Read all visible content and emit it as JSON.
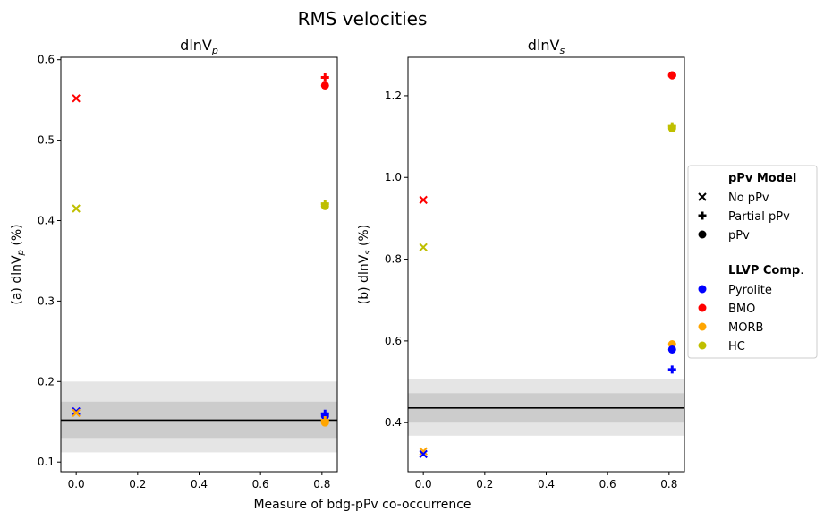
{
  "figure": {
    "suptitle": "RMS velocities",
    "xlabel": "Measure of bdg-pPv co-occurrence"
  },
  "legend": {
    "model_title": "pPv Model",
    "model_items": [
      {
        "label": "No pPv",
        "marker": "x"
      },
      {
        "label": "Partial pPv",
        "marker": "plus"
      },
      {
        "label": "pPv",
        "marker": "circle"
      }
    ],
    "comp_title_bold": "LLVP Comp",
    "comp_title_suffix": ".",
    "comp_items": [
      {
        "label": "Pyrolite",
        "color": "#0000ff"
      },
      {
        "label": "BMO",
        "color": "#ff0000"
      },
      {
        "label": "MORB",
        "color": "#ffa500"
      },
      {
        "label": "HC",
        "color": "#bfbf00"
      }
    ]
  },
  "chart_data": [
    {
      "type": "scatter",
      "title_main": "dlnV",
      "title_sub": "p",
      "ylabel_prefix": "(a) dlnV",
      "ylabel_sub": "p",
      "ylabel_suffix": " (%)",
      "xlim": [
        -0.05,
        0.85
      ],
      "ylim": [
        0.088,
        0.603
      ],
      "xticks": [
        0.0,
        0.2,
        0.4,
        0.6,
        0.8
      ],
      "xticklabels": [
        "0.0",
        "0.2",
        "0.4",
        "0.6",
        "0.8"
      ],
      "yticks": [
        0.1,
        0.2,
        0.3,
        0.4,
        0.5,
        0.6
      ],
      "yticklabels": [
        "0.1",
        "0.2",
        "0.3",
        "0.4",
        "0.5",
        "0.6"
      ],
      "bands": [
        {
          "y0": 0.112,
          "y1": 0.2,
          "color": "#e5e5e5"
        },
        {
          "y0": 0.13,
          "y1": 0.175,
          "color": "#cccccc"
        }
      ],
      "hline": 0.152,
      "points": [
        {
          "x": 0.0,
          "y": 0.552,
          "marker": "x",
          "comp": "BMO"
        },
        {
          "x": 0.0,
          "y": 0.415,
          "marker": "x",
          "comp": "HC"
        },
        {
          "x": 0.0,
          "y": 0.163,
          "marker": "x",
          "comp": "Pyrolite"
        },
        {
          "x": 0.0,
          "y": 0.161,
          "marker": "x",
          "comp": "MORB"
        },
        {
          "x": 0.81,
          "y": 0.578,
          "marker": "plus",
          "comp": "BMO"
        },
        {
          "x": 0.81,
          "y": 0.568,
          "marker": "circle",
          "comp": "BMO"
        },
        {
          "x": 0.81,
          "y": 0.421,
          "marker": "plus",
          "comp": "HC"
        },
        {
          "x": 0.81,
          "y": 0.418,
          "marker": "circle",
          "comp": "HC"
        },
        {
          "x": 0.81,
          "y": 0.16,
          "marker": "plus",
          "comp": "Pyrolite"
        },
        {
          "x": 0.81,
          "y": 0.157,
          "marker": "circle",
          "comp": "Pyrolite"
        },
        {
          "x": 0.81,
          "y": 0.152,
          "marker": "plus",
          "comp": "MORB"
        },
        {
          "x": 0.81,
          "y": 0.149,
          "marker": "circle",
          "comp": "MORB"
        }
      ]
    },
    {
      "type": "scatter",
      "title_main": "dlnV",
      "title_sub": "s",
      "ylabel_prefix": "(b) dlnV",
      "ylabel_sub": "s",
      "ylabel_suffix": " (%)",
      "xlim": [
        -0.05,
        0.85
      ],
      "ylim": [
        0.28,
        1.294
      ],
      "xticks": [
        0.0,
        0.2,
        0.4,
        0.6,
        0.8
      ],
      "xticklabels": [
        "0.0",
        "0.2",
        "0.4",
        "0.6",
        "0.8"
      ],
      "yticks": [
        0.4,
        0.6,
        0.8,
        1.0,
        1.2
      ],
      "yticklabels": [
        "0.4",
        "0.6",
        "0.8",
        "1.0",
        "1.2"
      ],
      "bands": [
        {
          "y0": 0.368,
          "y1": 0.507,
          "color": "#e5e5e5"
        },
        {
          "y0": 0.4,
          "y1": 0.472,
          "color": "#cccccc"
        }
      ],
      "hline": 0.436,
      "points": [
        {
          "x": 0.0,
          "y": 0.945,
          "marker": "x",
          "comp": "BMO"
        },
        {
          "x": 0.0,
          "y": 0.829,
          "marker": "x",
          "comp": "HC"
        },
        {
          "x": 0.0,
          "y": 0.33,
          "marker": "x",
          "comp": "MORB"
        },
        {
          "x": 0.0,
          "y": 0.323,
          "marker": "x",
          "comp": "Pyrolite"
        },
        {
          "x": 0.81,
          "y": 1.25,
          "marker": "plus",
          "comp": "BMO"
        },
        {
          "x": 0.81,
          "y": 1.25,
          "marker": "circle",
          "comp": "BMO"
        },
        {
          "x": 0.81,
          "y": 1.125,
          "marker": "plus",
          "comp": "HC"
        },
        {
          "x": 0.81,
          "y": 1.12,
          "marker": "circle",
          "comp": "HC"
        },
        {
          "x": 0.81,
          "y": 0.592,
          "marker": "circle",
          "comp": "MORB"
        },
        {
          "x": 0.81,
          "y": 0.579,
          "marker": "circle",
          "comp": "Pyrolite"
        },
        {
          "x": 0.81,
          "y": 0.53,
          "marker": "plus",
          "comp": "Pyrolite"
        }
      ]
    }
  ]
}
